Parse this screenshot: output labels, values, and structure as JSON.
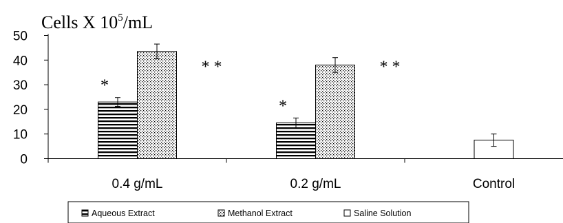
{
  "chart_data": {
    "type": "bar",
    "title": "",
    "ylabel_parts": {
      "prefix": "Cells X 10",
      "superscript": "5",
      "suffix": "/mL"
    },
    "xlabel": "",
    "categories": [
      "0.4 g/mL",
      "0.2 g/mL",
      "Control"
    ],
    "ylim": [
      0,
      50
    ],
    "yticks": [
      0,
      10,
      20,
      30,
      40,
      50
    ],
    "grid": false,
    "legend_position": "bottom",
    "series": [
      {
        "name": "Aqueous Extract",
        "pattern": "horizontal-lines",
        "values": [
          23,
          14.5,
          null
        ],
        "errors": [
          1.8,
          2.0,
          null
        ]
      },
      {
        "name": "Methanol Extract",
        "pattern": "dots",
        "values": [
          43.5,
          38,
          null
        ],
        "errors": [
          3.0,
          3.0,
          null
        ]
      },
      {
        "name": "Saline Solution",
        "pattern": "plain",
        "values": [
          null,
          null,
          7.5
        ],
        "errors": [
          null,
          null,
          2.5
        ]
      }
    ],
    "annotations": [
      {
        "text": "*",
        "category": "0.4 g/mL",
        "series": "Aqueous Extract"
      },
      {
        "text": "* *",
        "category": "0.4 g/mL",
        "series": "Methanol Extract"
      },
      {
        "text": "*",
        "category": "0.2 g/mL",
        "series": "Aqueous Extract"
      },
      {
        "text": "* *",
        "category": "0.2 g/mL",
        "series": "Methanol Extract"
      }
    ],
    "colors": {
      "bar_outline": "#000000",
      "background": "#ffffff"
    }
  }
}
